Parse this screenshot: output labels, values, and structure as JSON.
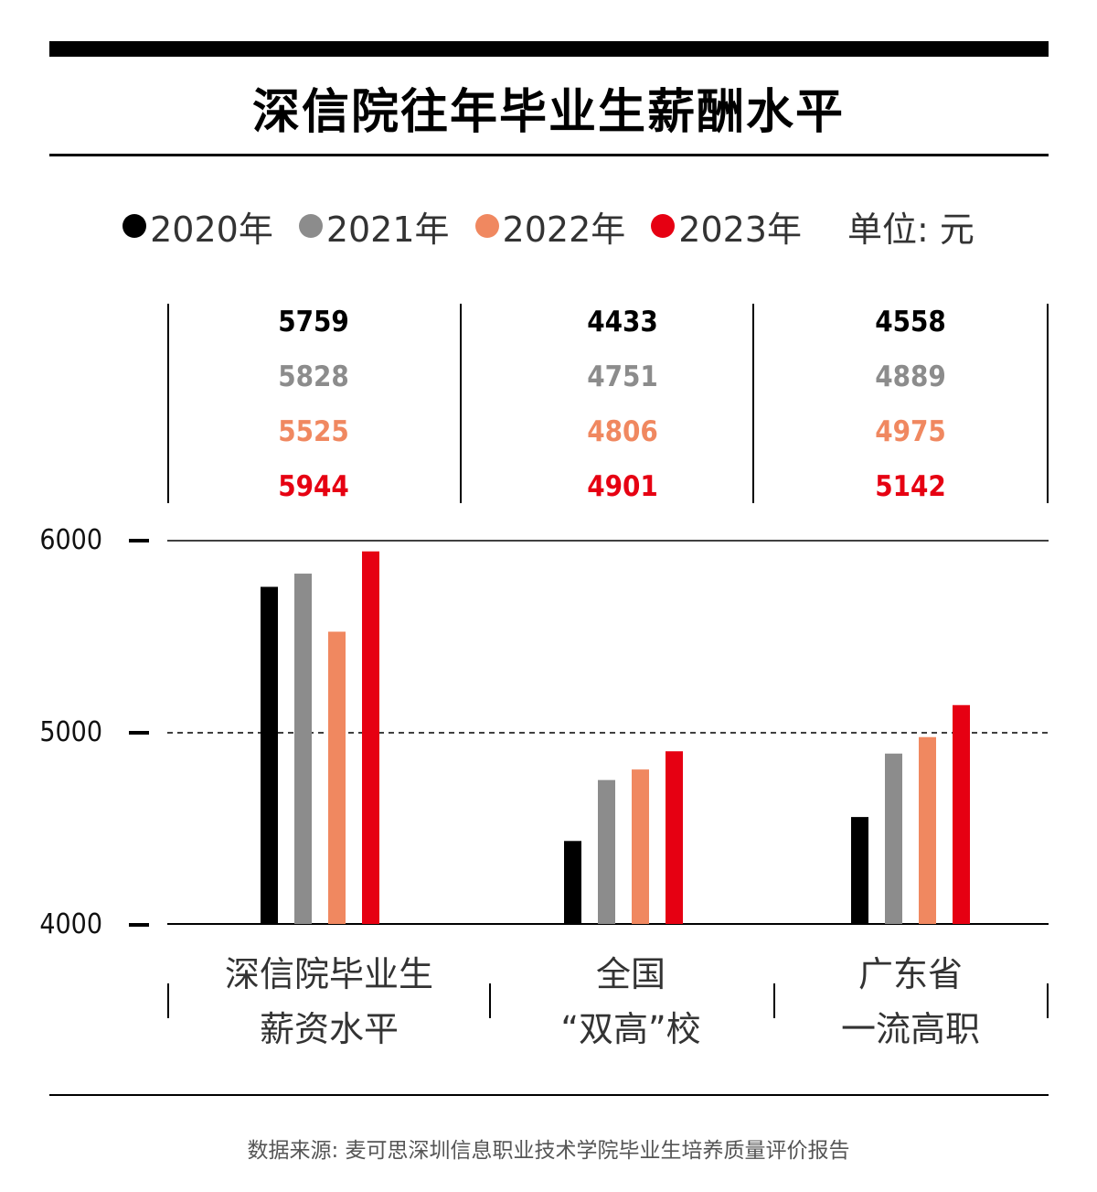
{
  "title": "深信院往年毕业生薪酬水平",
  "legend": {
    "items": [
      {
        "label": "2020年",
        "color": "#000000"
      },
      {
        "label": "2021年",
        "color": "#8c8c8c"
      },
      {
        "label": "2022年",
        "color": "#f08860"
      },
      {
        "label": "2023年",
        "color": "#e60012"
      }
    ],
    "unit": "单位: 元"
  },
  "source": "数据来源: 麦可思深圳信息职业技术学院毕业生培养质量评价报告",
  "categories_text": {
    "c0": {
      "line1": "深信院毕业生",
      "line2": "薪资水平"
    },
    "c1": {
      "line1": "全国",
      "line2": "“双高”校"
    },
    "c2": {
      "line1": "广东省",
      "line2": "一流高职"
    }
  },
  "yaxis": {
    "t6000": "6000",
    "t5000": "5000",
    "t4000": "4000"
  },
  "values_text": {
    "c0": [
      "5759",
      "5828",
      "5525",
      "5944"
    ],
    "c1": [
      "4433",
      "4751",
      "4806",
      "4901"
    ],
    "c2": [
      "4558",
      "4889",
      "4975",
      "5142"
    ]
  },
  "chart_data": {
    "type": "bar",
    "title": "深信院往年毕业生薪酬水平",
    "categories": [
      "深信院毕业生薪资水平",
      "全国“双高”校",
      "广东省一流高职"
    ],
    "series": [
      {
        "name": "2020年",
        "color": "#000000",
        "values": [
          5759,
          4433,
          4558
        ]
      },
      {
        "name": "2021年",
        "color": "#8c8c8c",
        "values": [
          5828,
          4751,
          4889
        ]
      },
      {
        "name": "2022年",
        "color": "#f08860",
        "values": [
          5525,
          4806,
          4975
        ]
      },
      {
        "name": "2023年",
        "color": "#e60012",
        "values": [
          5944,
          4901,
          5142
        ]
      }
    ],
    "ylim": [
      4000,
      6000
    ],
    "yticks": [
      4000,
      5000,
      6000
    ],
    "unit": "元",
    "xlabel": "",
    "ylabel": "",
    "grid": "dashed line at 5000",
    "legend_position": "top"
  }
}
